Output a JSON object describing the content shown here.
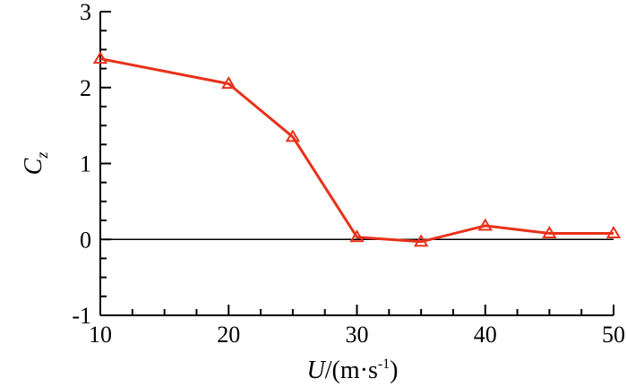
{
  "chart_data": {
    "type": "line",
    "title": "",
    "xlabel_var": "U",
    "xlabel_unit": "/(m·s",
    "xlabel_exp": "-1",
    "xlabel_close": ")",
    "ylabel_var": "C",
    "ylabel_sub": "z",
    "xlim": [
      10,
      50
    ],
    "ylim": [
      -1,
      3
    ],
    "xticks": [
      10,
      20,
      30,
      40,
      50
    ],
    "yticks": [
      -1,
      0,
      1,
      2,
      3
    ],
    "xtick_labels": [
      "10",
      "20",
      "30",
      "40",
      "50"
    ],
    "ytick_labels": [
      "-1",
      "0",
      "1",
      "2",
      "3"
    ],
    "zero_line": true,
    "grid": false,
    "series": [
      {
        "marker": "triangle-open",
        "color": "#e8311a",
        "x": [
          10,
          20,
          25,
          30,
          35,
          40,
          45,
          50
        ],
        "y": [
          2.38,
          2.05,
          1.35,
          0.03,
          -0.03,
          0.18,
          0.08,
          0.08
        ]
      }
    ]
  }
}
